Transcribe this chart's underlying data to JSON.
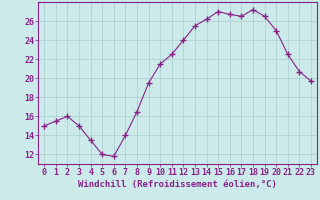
{
  "x": [
    0,
    1,
    2,
    3,
    4,
    5,
    6,
    7,
    8,
    9,
    10,
    11,
    12,
    13,
    14,
    15,
    16,
    17,
    18,
    19,
    20,
    21,
    22,
    23
  ],
  "y": [
    15.0,
    15.5,
    16.0,
    15.0,
    13.5,
    12.0,
    11.8,
    14.0,
    16.5,
    19.5,
    21.5,
    22.5,
    24.0,
    25.5,
    26.2,
    27.0,
    26.7,
    26.5,
    27.2,
    26.5,
    25.0,
    22.5,
    20.7,
    19.7
  ],
  "line_color": "#882288",
  "marker": "+",
  "marker_size": 4,
  "marker_linewidth": 1.0,
  "background_color": "#cceaea",
  "grid_color": "#aacccc",
  "xlabel": "Windchill (Refroidissement éolien,°C)",
  "xlabel_fontsize": 6.5,
  "ylim": [
    11,
    28
  ],
  "xlim": [
    -0.5,
    23.5
  ],
  "yticks": [
    12,
    14,
    16,
    18,
    20,
    22,
    24,
    26
  ],
  "xticks": [
    0,
    1,
    2,
    3,
    4,
    5,
    6,
    7,
    8,
    9,
    10,
    11,
    12,
    13,
    14,
    15,
    16,
    17,
    18,
    19,
    20,
    21,
    22,
    23
  ],
  "tick_fontsize": 6,
  "linewidth": 0.8
}
